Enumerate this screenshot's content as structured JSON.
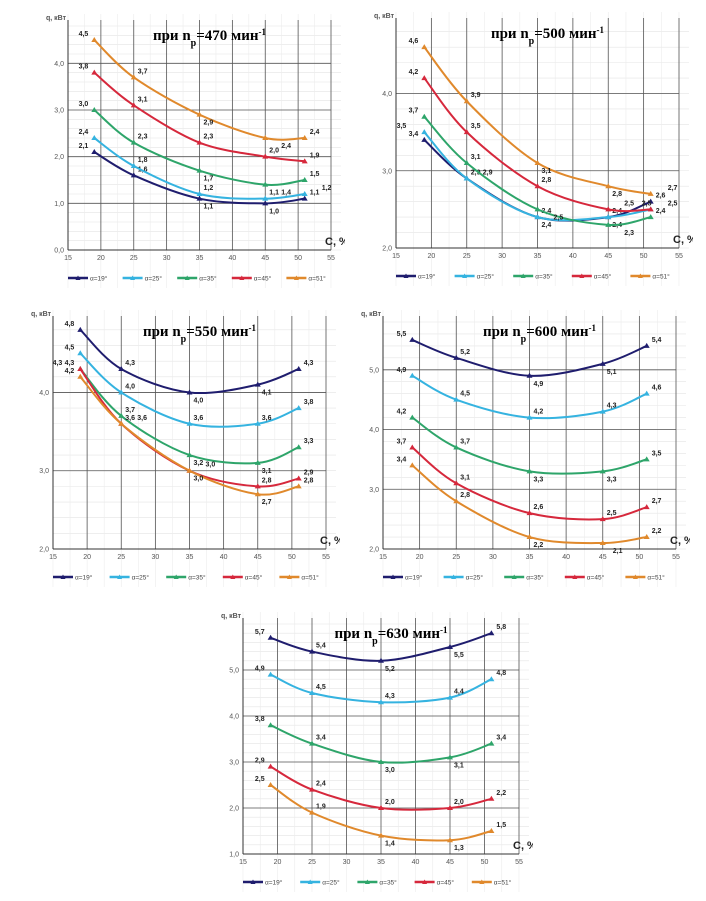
{
  "chart_data": [
    {
      "type": "line",
      "title": {
        "prefix": "при n",
        "sub": "р",
        "mid": "=470 мин",
        "sup": "-1"
      },
      "ylabel": "q, кВт",
      "xlabel": "C, %",
      "xlim": [
        15,
        55
      ],
      "ylim": [
        0,
        4.8
      ],
      "xticks": [
        "15",
        "20",
        "25",
        "30",
        "35",
        "40",
        "45",
        "50",
        "55"
      ],
      "yticks": [
        {
          "v": 0,
          "t": "0,0"
        },
        {
          "v": 1,
          "t": "1,0"
        },
        {
          "v": 2,
          "t": "2,0"
        },
        {
          "v": 3,
          "t": "3,0"
        },
        {
          "v": 4,
          "t": "4,0"
        }
      ],
      "x": [
        19,
        25,
        35,
        45,
        51
      ],
      "series": [
        {
          "name": "α=19°",
          "values": [
            2.1,
            1.6,
            1.1,
            1.0,
            1.1
          ],
          "labels": [
            "2,1",
            "1,6",
            "1,1",
            "1,0",
            "1,1"
          ]
        },
        {
          "name": "α=25°",
          "values": [
            2.4,
            1.8,
            1.2,
            1.1,
            1.2
          ],
          "labels": [
            "2,4",
            "1,8",
            "1,2",
            "1,1",
            "1,2"
          ]
        },
        {
          "name": "α=35°",
          "values": [
            3.0,
            2.3,
            1.7,
            1.4,
            1.5
          ],
          "labels": [
            "3,0",
            "2,3",
            "1,7",
            "1,4",
            "1,5"
          ]
        },
        {
          "name": "α=45°",
          "values": [
            3.8,
            3.1,
            2.3,
            2.0,
            1.9
          ],
          "labels": [
            "3,8",
            "3,1",
            "2,3",
            "2,0",
            "1,9"
          ]
        },
        {
          "name": "α=51°",
          "values": [
            4.5,
            3.7,
            2.9,
            2.4,
            2.4
          ],
          "labels": [
            "4,5",
            "3,7",
            "2,9",
            "2,4",
            "2,4"
          ]
        }
      ]
    },
    {
      "type": "line",
      "title": {
        "prefix": "при n",
        "sub": "р",
        "mid": "=500 мин",
        "sup": "-1"
      },
      "ylabel": "q, кВт",
      "xlabel": "C, %",
      "xlim": [
        15,
        55
      ],
      "ylim": [
        2,
        4.9
      ],
      "xticks": [
        "15",
        "20",
        "25",
        "30",
        "35",
        "40",
        "45",
        "50",
        "55"
      ],
      "yticks": [
        {
          "v": 2,
          "t": "2,0"
        },
        {
          "v": 3,
          "t": "3,0"
        },
        {
          "v": 4,
          "t": "4,0"
        }
      ],
      "x": [
        19,
        25,
        35,
        45,
        51
      ],
      "series": [
        {
          "name": "α=19°",
          "values": [
            3.4,
            2.9,
            2.4,
            2.4,
            2.6
          ],
          "labels": [
            "3,4",
            "2,9",
            "2,4",
            "2,4",
            "2,6"
          ]
        },
        {
          "name": "α=25°",
          "values": [
            3.5,
            2.9,
            2.4,
            2.4,
            2.5
          ],
          "labels": [
            "3,5",
            "2,9",
            "2,4",
            "2,4",
            "2,5"
          ]
        },
        {
          "name": "α=35°",
          "values": [
            3.7,
            3.1,
            2.5,
            2.3,
            2.4
          ],
          "labels": [
            "3,7",
            "3,1",
            "2,5",
            "2,3",
            "2,4"
          ]
        },
        {
          "name": "α=45°",
          "values": [
            4.2,
            3.5,
            2.8,
            2.5,
            2.5
          ],
          "labels": [
            "4,2",
            "3,5",
            "2,8",
            "2,5",
            "2,5"
          ]
        },
        {
          "name": "α=51°",
          "values": [
            4.6,
            3.9,
            3.1,
            2.8,
            2.7
          ],
          "labels": [
            "4,6",
            "3,9",
            "3,1",
            "2,8",
            "2,7"
          ]
        }
      ]
    },
    {
      "type": "line",
      "title": {
        "prefix": "при n",
        "sub": "р",
        "mid": "=550 мин",
        "sup": "-1"
      },
      "ylabel": "q, кВт",
      "xlabel": "C, %",
      "xlim": [
        15,
        55
      ],
      "ylim": [
        2,
        4.9
      ],
      "xticks": [
        "15",
        "20",
        "25",
        "30",
        "35",
        "40",
        "45",
        "50",
        "55"
      ],
      "yticks": [
        {
          "v": 2,
          "t": "2,0"
        },
        {
          "v": 3,
          "t": "3,0"
        },
        {
          "v": 4,
          "t": "4,0"
        }
      ],
      "x": [
        19,
        25,
        35,
        45,
        51
      ],
      "series": [
        {
          "name": "α=19°",
          "values": [
            4.8,
            4.3,
            4.0,
            4.1,
            4.3
          ],
          "labels": [
            "4,8",
            "4,3",
            "4,0",
            "4,1",
            "4,3"
          ]
        },
        {
          "name": "α=25°",
          "values": [
            4.5,
            4.0,
            3.6,
            3.6,
            3.8
          ],
          "labels": [
            "4,5",
            "4,0",
            "3,6",
            "3,6",
            "3,8"
          ]
        },
        {
          "name": "α=35°",
          "values": [
            4.3,
            3.7,
            3.2,
            3.1,
            3.3
          ],
          "labels": [
            "4,3",
            "3,7",
            "3,2",
            "3,1",
            "3,3"
          ]
        },
        {
          "name": "α=45°",
          "values": [
            4.3,
            3.6,
            3.0,
            2.8,
            2.9
          ],
          "labels": [
            "4,3",
            "3,6",
            "3,0",
            "2,8",
            "2,9"
          ]
        },
        {
          "name": "α=51°",
          "values": [
            4.2,
            3.6,
            3.0,
            2.7,
            2.8
          ],
          "labels": [
            "4,2",
            "3,6",
            "3,0",
            "2,7",
            "2,8"
          ]
        }
      ]
    },
    {
      "type": "line",
      "title": {
        "prefix": "при n",
        "sub": "р",
        "mid": "=600 мин",
        "sup": "-1"
      },
      "ylabel": "q, кВт",
      "xlabel": "C, %",
      "xlim": [
        15,
        55
      ],
      "ylim": [
        2,
        5.8
      ],
      "xticks": [
        "15",
        "20",
        "25",
        "30",
        "35",
        "40",
        "45",
        "50",
        "55"
      ],
      "yticks": [
        {
          "v": 2,
          "t": "2,0"
        },
        {
          "v": 3,
          "t": "3,0"
        },
        {
          "v": 4,
          "t": "4,0"
        },
        {
          "v": 5,
          "t": "5,0"
        }
      ],
      "x": [
        19,
        25,
        35,
        45,
        51
      ],
      "series": [
        {
          "name": "α=19°",
          "values": [
            5.5,
            5.2,
            4.9,
            5.1,
            5.4
          ],
          "labels": [
            "5,5",
            "5,2",
            "4,9",
            "5,1",
            "5,4"
          ]
        },
        {
          "name": "α=25°",
          "values": [
            4.9,
            4.5,
            4.2,
            4.3,
            4.6
          ],
          "labels": [
            "4,9",
            "4,5",
            "4,2",
            "4,3",
            "4,6"
          ]
        },
        {
          "name": "α=35°",
          "values": [
            4.2,
            3.7,
            3.3,
            3.3,
            3.5
          ],
          "labels": [
            "4,2",
            "3,7",
            "3,3",
            "3,3",
            "3,5"
          ]
        },
        {
          "name": "α=45°",
          "values": [
            3.7,
            3.1,
            2.6,
            2.5,
            2.7
          ],
          "labels": [
            "3,7",
            "3,1",
            "2,6",
            "2,5",
            "2,7"
          ]
        },
        {
          "name": "α=51°",
          "values": [
            3.4,
            2.8,
            2.2,
            2.1,
            2.2
          ],
          "labels": [
            "3,4",
            "2,8",
            "2,2",
            "2,1",
            "2,2"
          ]
        }
      ]
    },
    {
      "type": "line",
      "title": {
        "prefix": "при n",
        "sub": "р",
        "mid": "=630 мин",
        "sup": "-1"
      },
      "ylabel": "q, кВт",
      "xlabel": "C, %",
      "xlim": [
        15,
        55
      ],
      "ylim": [
        1,
        6
      ],
      "xticks": [
        "15",
        "20",
        "25",
        "30",
        "35",
        "40",
        "45",
        "50",
        "55"
      ],
      "yticks": [
        {
          "v": 1,
          "t": "1,0"
        },
        {
          "v": 2,
          "t": "2,0"
        },
        {
          "v": 3,
          "t": "3,0"
        },
        {
          "v": 4,
          "t": "4,0"
        },
        {
          "v": 5,
          "t": "5,0"
        }
      ],
      "x": [
        19,
        25,
        35,
        45,
        51
      ],
      "series": [
        {
          "name": "α=19°",
          "values": [
            5.7,
            5.4,
            5.2,
            5.5,
            5.8
          ],
          "labels": [
            "5,7",
            "5,4",
            "5,2",
            "5,5",
            "5,8"
          ]
        },
        {
          "name": "α=25°",
          "values": [
            4.9,
            4.5,
            4.3,
            4.4,
            4.8
          ],
          "labels": [
            "4,9",
            "4,5",
            "4,3",
            "4,4",
            "4,8"
          ]
        },
        {
          "name": "α=35°",
          "values": [
            3.8,
            3.4,
            3.0,
            3.1,
            3.4
          ],
          "labels": [
            "3,8",
            "3,4",
            "3,0",
            "3,1",
            "3,4"
          ]
        },
        {
          "name": "α=45°",
          "values": [
            2.9,
            2.4,
            2.0,
            2.0,
            2.2
          ],
          "labels": [
            "2,9",
            "2,4",
            "2,0",
            "2,0",
            "2,2"
          ]
        },
        {
          "name": "α=51°",
          "values": [
            2.5,
            1.9,
            1.4,
            1.3,
            1.5
          ],
          "labels": [
            "2,5",
            "1,9",
            "1,4",
            "1,3",
            "1,5"
          ]
        }
      ]
    }
  ],
  "colors": [
    "#1f1d6e",
    "#35b3e0",
    "#2ea56a",
    "#d6283c",
    "#e0892c"
  ]
}
